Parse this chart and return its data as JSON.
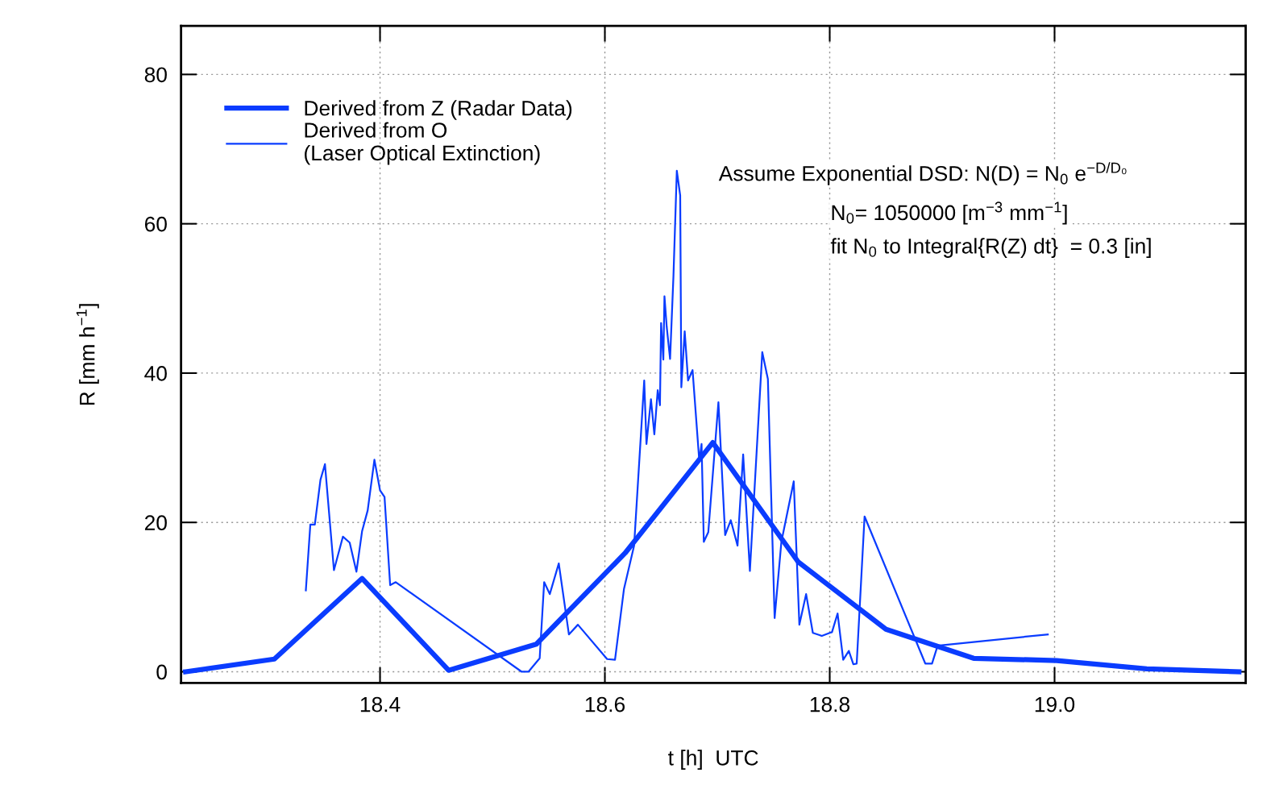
{
  "chart_data": {
    "type": "line",
    "xlabel": "t [h]  UTC",
    "ylabel": "R [mm h$^{−1}$]",
    "xlim": [
      18.223,
      19.17
    ],
    "ylim": [
      -1.5,
      86.5
    ],
    "xticks": [
      18.4,
      18.6,
      18.8,
      {
        "value": 19.0,
        "label": "19.0"
      }
    ],
    "yticks": [
      0,
      20,
      40,
      60,
      80
    ],
    "grid": true,
    "legend": "top left",
    "line_style": "solid",
    "marker": "none",
    "annotations": [
      "Assume Exponential DSD: N(D) = N$_{0}$ e$^{−D/D₀}$",
      "N$_{0}$= 1050000 [m$^{−3}$ mm$^{−1}$]",
      "fit N$_{0}$ to Integral{R(Z) dt}  = 0.3 [in]"
    ],
    "series": [
      {
        "name": "Derived from Z (Radar Data)",
        "color": "#0a3cff",
        "x": [
          18.227,
          18.306,
          18.384,
          18.461,
          18.539,
          18.618,
          18.696,
          18.772,
          18.85,
          18.928,
          19.002,
          19.082,
          19.164
        ],
        "values": [
          0,
          1.7,
          12.5,
          0.2,
          3.7,
          15.9,
          30.7,
          14.7,
          5.7,
          1.8,
          1.5,
          0.4,
          0
        ]
      },
      {
        "name": "Derived from O\n(Laser Optical Extinction)",
        "color": "#0a3cff",
        "x": [
          18.334,
          18.338,
          18.342,
          18.347,
          18.351,
          18.359,
          18.367,
          18.373,
          18.379,
          18.384,
          18.389,
          18.395,
          18.4,
          18.404,
          18.409,
          18.414,
          18.526,
          18.532,
          18.542,
          18.546,
          18.551,
          18.559,
          18.568,
          18.576,
          18.602,
          18.609,
          18.617,
          18.626,
          18.635,
          18.637,
          18.641,
          18.644,
          18.647,
          18.649,
          18.65,
          18.652,
          18.653,
          18.655,
          18.658,
          18.661,
          18.664,
          18.667,
          18.668,
          18.671,
          18.674,
          18.678,
          18.684,
          18.686,
          18.688,
          18.692,
          18.701,
          18.707,
          18.712,
          18.718,
          18.723,
          18.729,
          18.74,
          18.745,
          18.751,
          18.757,
          18.768,
          18.773,
          18.779,
          18.785,
          18.793,
          18.8,
          18.802,
          18.807,
          18.812,
          18.817,
          18.821,
          18.824,
          18.831,
          18.885,
          18.891,
          18.896,
          18.994
        ],
        "values": [
          10.9,
          19.7,
          19.7,
          25.7,
          27.8,
          13.6,
          18.1,
          17.3,
          13.4,
          18.8,
          21.6,
          28.4,
          24.3,
          23.4,
          11.6,
          12.0,
          0,
          0,
          1.8,
          12.0,
          10.4,
          14.5,
          5.0,
          6.3,
          1.7,
          1.6,
          11.1,
          16.9,
          39.0,
          30.5,
          36.5,
          31.8,
          37.7,
          35.7,
          46.7,
          41.8,
          50.3,
          46.2,
          41.9,
          53.0,
          67.1,
          63.8,
          38.1,
          45.6,
          39.0,
          40.4,
          28.2,
          30.5,
          17.4,
          18.7,
          36.1,
          18.3,
          20.3,
          16.9,
          29.1,
          13.5,
          42.8,
          39.2,
          7.2,
          17.4,
          25.5,
          6.3,
          10.4,
          5.2,
          4.8,
          5.2,
          5.3,
          7.8,
          1.6,
          2.8,
          1.0,
          1.1,
          20.8,
          1.1,
          1.1,
          3.5,
          5.0
        ]
      }
    ]
  }
}
